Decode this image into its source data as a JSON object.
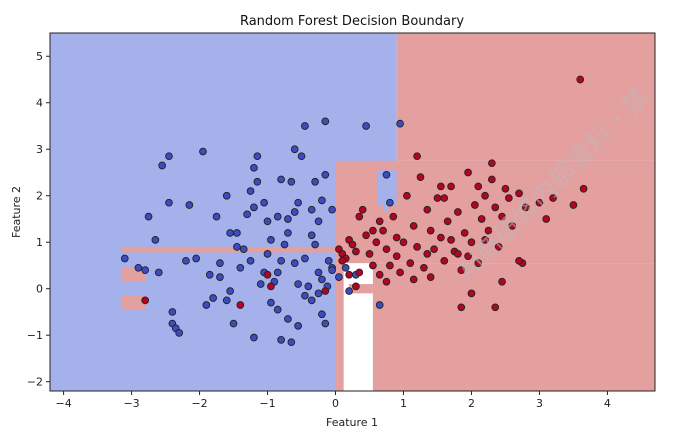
{
  "chart_data": {
    "type": "scatter",
    "title": "Random Forest Decision Boundary",
    "xlabel": "Feature 1",
    "ylabel": "Feature 2",
    "xlim": [
      -4.2,
      4.7
    ],
    "ylim": [
      -2.2,
      5.5
    ],
    "x_ticks": [
      -4,
      -3,
      -2,
      -1,
      0,
      1,
      2,
      3,
      4
    ],
    "y_ticks": [
      -2,
      -1,
      0,
      1,
      2,
      3,
      4,
      5
    ],
    "grid": false,
    "colors": {
      "class0_region": "#a5b1ea",
      "class1_region": "#e49f9f",
      "class0_point": "#3a4cc0",
      "class1_point": "#b40426",
      "edge": "#222222"
    },
    "regions": [
      {
        "class": 0,
        "x": [
          -4.2,
          0.0
        ],
        "y": [
          -2.2,
          5.5
        ]
      },
      {
        "class": 0,
        "x": [
          0.0,
          0.9
        ],
        "y": [
          2.7,
          5.5
        ]
      },
      {
        "class": 1,
        "x": [
          0.9,
          4.7
        ],
        "y": [
          2.75,
          5.5
        ]
      },
      {
        "class": 1,
        "x": [
          0.0,
          4.7
        ],
        "y": [
          0.55,
          2.75
        ]
      },
      {
        "class": 0,
        "x": [
          0.62,
          0.9
        ],
        "y": [
          1.8,
          2.55
        ]
      },
      {
        "class": 0,
        "x": [
          0.7,
          0.77
        ],
        "y": [
          1.65,
          2.4
        ]
      },
      {
        "class": 1,
        "x": [
          0.55,
          4.7
        ],
        "y": [
          -2.2,
          0.55
        ]
      },
      {
        "class": 1,
        "x": [
          0.0,
          0.12
        ],
        "y": [
          -2.2,
          0.55
        ]
      },
      {
        "class": 1,
        "x": [
          0.2,
          0.55
        ],
        "y": [
          -0.1,
          0.1
        ]
      },
      {
        "class": 1,
        "x": [
          -3.15,
          0.0
        ],
        "y": [
          0.78,
          0.9
        ]
      },
      {
        "class": 1,
        "x": [
          -3.15,
          -2.8
        ],
        "y": [
          0.15,
          0.45
        ]
      },
      {
        "class": 1,
        "x": [
          -3.15,
          -2.8
        ],
        "y": [
          -0.45,
          -0.15
        ]
      }
    ],
    "series": [
      {
        "class": 0,
        "points": [
          [
            -3.1,
            0.65
          ],
          [
            -2.8,
            0.4
          ],
          [
            -2.75,
            1.55
          ],
          [
            -2.6,
            0.35
          ],
          [
            -2.55,
            2.65
          ],
          [
            -2.45,
            2.85
          ],
          [
            -2.65,
            1.05
          ],
          [
            -2.45,
            1.85
          ],
          [
            -2.4,
            -0.5
          ],
          [
            -2.4,
            -0.75
          ],
          [
            -2.35,
            -0.85
          ],
          [
            -2.3,
            -0.95
          ],
          [
            -2.2,
            0.6
          ],
          [
            -2.05,
            0.65
          ],
          [
            -1.95,
            2.95
          ],
          [
            -1.9,
            -0.35
          ],
          [
            -1.85,
            0.3
          ],
          [
            -1.8,
            -0.2
          ],
          [
            -1.7,
            0.55
          ],
          [
            -1.6,
            -0.25
          ],
          [
            -1.55,
            -0.05
          ],
          [
            -1.45,
            1.2
          ],
          [
            -1.4,
            0.45
          ],
          [
            -1.3,
            1.6
          ],
          [
            -1.5,
            -0.75
          ],
          [
            -1.35,
            0.85
          ],
          [
            -1.25,
            2.1
          ],
          [
            -1.2,
            1.75
          ],
          [
            -1.15,
            2.85
          ],
          [
            -1.05,
            1.85
          ],
          [
            -1.0,
            1.45
          ],
          [
            -1.0,
            0.75
          ],
          [
            -0.95,
            1.05
          ],
          [
            -0.9,
            0.15
          ],
          [
            -0.85,
            0.35
          ],
          [
            -0.8,
            -1.1
          ],
          [
            -0.75,
            0.95
          ],
          [
            -0.7,
            1.5
          ],
          [
            -0.65,
            2.3
          ],
          [
            -0.6,
            1.65
          ],
          [
            -0.55,
            1.85
          ],
          [
            -0.5,
            2.85
          ],
          [
            -0.45,
            0.65
          ],
          [
            -0.4,
            0.05
          ],
          [
            -0.35,
            1.15
          ],
          [
            -0.3,
            0.95
          ],
          [
            -0.25,
            1.45
          ],
          [
            -0.2,
            1.9
          ],
          [
            -0.15,
            2.45
          ],
          [
            -0.1,
            0.6
          ],
          [
            -0.05,
            1.7
          ],
          [
            -0.6,
            3.0
          ],
          [
            -0.45,
            3.5
          ],
          [
            -1.6,
            2.0
          ],
          [
            -1.05,
            0.35
          ],
          [
            -1.1,
            0.1
          ],
          [
            -1.2,
            -1.05
          ],
          [
            -0.95,
            -0.3
          ],
          [
            -0.85,
            -0.45
          ],
          [
            -0.7,
            -0.65
          ],
          [
            -0.55,
            -0.8
          ],
          [
            -0.45,
            -0.15
          ],
          [
            -0.35,
            -0.25
          ],
          [
            -0.2,
            -0.55
          ],
          [
            -0.15,
            -0.75
          ],
          [
            -0.65,
            -1.15
          ],
          [
            -0.25,
            0.35
          ],
          [
            -0.2,
            0.2
          ],
          [
            -0.12,
            0.05
          ],
          [
            -0.05,
            0.45
          ],
          [
            0.05,
            0.25
          ],
          [
            0.15,
            0.45
          ],
          [
            0.2,
            -0.05
          ],
          [
            0.3,
            0.3
          ],
          [
            -0.25,
            -0.1
          ],
          [
            -0.6,
            0.55
          ],
          [
            -0.55,
            0.1
          ],
          [
            -0.35,
            1.7
          ],
          [
            -1.45,
            0.9
          ],
          [
            -1.25,
            0.6
          ],
          [
            -1.75,
            1.55
          ],
          [
            -1.55,
            1.2
          ],
          [
            -1.15,
            2.3
          ],
          [
            -0.85,
            1.55
          ],
          [
            -0.8,
            2.35
          ],
          [
            -0.7,
            1.2
          ],
          [
            -0.3,
            2.3
          ],
          [
            -0.15,
            3.6
          ],
          [
            0.45,
            3.5
          ],
          [
            0.95,
            3.55
          ],
          [
            0.8,
            1.85
          ],
          [
            0.75,
            2.45
          ],
          [
            -1.2,
            2.6
          ],
          [
            -2.15,
            1.8
          ],
          [
            -1.7,
            0.25
          ],
          [
            -0.05,
            0.4
          ],
          [
            -2.9,
            0.45
          ],
          [
            -0.8,
            0.6
          ],
          [
            0.65,
            -0.35
          ]
        ]
      },
      {
        "class": 1,
        "points": [
          [
            3.6,
            4.5
          ],
          [
            -2.8,
            -0.25
          ],
          [
            -1.4,
            -0.35
          ],
          [
            -0.95,
            0.05
          ],
          [
            0.05,
            0.85
          ],
          [
            0.1,
            0.75
          ],
          [
            0.15,
            0.65
          ],
          [
            0.2,
            1.05
          ],
          [
            0.25,
            0.95
          ],
          [
            0.3,
            0.8
          ],
          [
            0.35,
            0.35
          ],
          [
            0.3,
            0.05
          ],
          [
            0.4,
            1.7
          ],
          [
            0.45,
            1.15
          ],
          [
            0.5,
            0.75
          ],
          [
            0.55,
            0.5
          ],
          [
            0.6,
            1.0
          ],
          [
            0.65,
            0.3
          ],
          [
            0.7,
            1.25
          ],
          [
            0.75,
            0.85
          ],
          [
            0.8,
            0.5
          ],
          [
            0.85,
            1.55
          ],
          [
            0.9,
            0.7
          ],
          [
            0.95,
            0.35
          ],
          [
            1.0,
            1.0
          ],
          [
            1.05,
            2.0
          ],
          [
            1.1,
            0.55
          ],
          [
            1.15,
            1.35
          ],
          [
            1.2,
            0.9
          ],
          [
            1.25,
            2.4
          ],
          [
            1.3,
            0.45
          ],
          [
            1.35,
            1.7
          ],
          [
            1.4,
            0.25
          ],
          [
            1.45,
            0.85
          ],
          [
            1.5,
            1.95
          ],
          [
            1.55,
            1.1
          ],
          [
            1.6,
            0.6
          ],
          [
            1.65,
            1.45
          ],
          [
            1.7,
            2.2
          ],
          [
            1.75,
            0.8
          ],
          [
            1.8,
            1.65
          ],
          [
            1.85,
            0.4
          ],
          [
            1.9,
            1.2
          ],
          [
            1.95,
            2.5
          ],
          [
            2.0,
            1.0
          ],
          [
            2.05,
            1.8
          ],
          [
            2.1,
            0.55
          ],
          [
            2.15,
            1.5
          ],
          [
            2.2,
            2.0
          ],
          [
            2.25,
            1.25
          ],
          [
            2.3,
            2.7
          ],
          [
            2.35,
            1.75
          ],
          [
            2.4,
            0.9
          ],
          [
            2.45,
            1.55
          ],
          [
            2.5,
            2.15
          ],
          [
            2.6,
            1.35
          ],
          [
            2.7,
            2.05
          ],
          [
            2.75,
            0.55
          ],
          [
            2.8,
            1.75
          ],
          [
            3.0,
            1.85
          ],
          [
            3.1,
            1.5
          ],
          [
            3.2,
            1.95
          ],
          [
            3.5,
            1.8
          ],
          [
            3.65,
            2.15
          ],
          [
            1.85,
            -0.4
          ],
          [
            2.35,
            -0.4
          ],
          [
            2.0,
            -0.1
          ],
          [
            1.8,
            0.75
          ],
          [
            1.55,
            2.2
          ],
          [
            2.1,
            2.2
          ],
          [
            1.2,
            2.85
          ],
          [
            0.55,
            1.25
          ],
          [
            0.35,
            1.55
          ],
          [
            0.65,
            1.45
          ],
          [
            0.2,
            0.3
          ],
          [
            0.1,
            0.6
          ],
          [
            -0.15,
            -0.05
          ],
          [
            -1.0,
            0.3
          ],
          [
            2.45,
            0.15
          ],
          [
            2.7,
            0.6
          ],
          [
            2.3,
            2.35
          ],
          [
            1.7,
            1.05
          ],
          [
            1.95,
            0.7
          ],
          [
            1.4,
            1.25
          ],
          [
            1.15,
            0.2
          ],
          [
            0.9,
            1.1
          ],
          [
            0.75,
            0.15
          ],
          [
            1.35,
            0.75
          ],
          [
            1.6,
            1.95
          ],
          [
            2.2,
            1.05
          ],
          [
            2.55,
            1.95
          ]
        ]
      }
    ],
    "watermark": "Ai商研修内部资料・禁"
  }
}
